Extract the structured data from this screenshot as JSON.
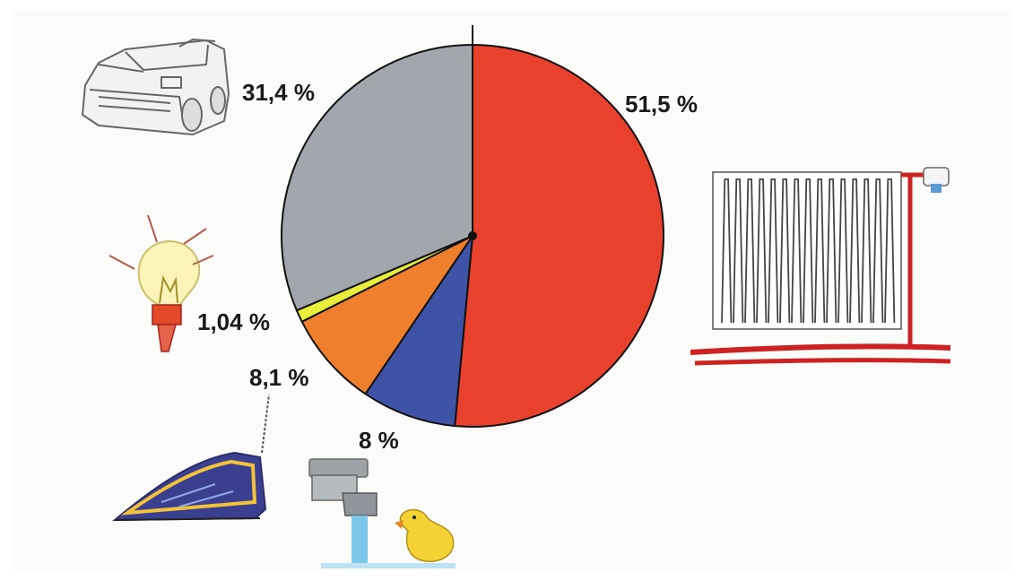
{
  "chart_data": {
    "type": "pie",
    "title": "",
    "slices": [
      {
        "value": 51.5,
        "label": "51,5 %",
        "color": "#e8412d",
        "icon": "radiator-icon"
      },
      {
        "value": 8,
        "label": "8 %",
        "color": "#3f53a6",
        "icon": "water-tap-icon"
      },
      {
        "value": 8.1,
        "label": "8,1 %",
        "color": "#f07f2d",
        "icon": "iron-icon"
      },
      {
        "value": 1.04,
        "label": "1,04 %",
        "color": "#e9ee3a",
        "icon": "light-bulb-icon"
      },
      {
        "value": 31.4,
        "label": "31,4 %",
        "color": "#a2a6ad",
        "icon": "car-icon"
      }
    ],
    "start_angle_deg": 0,
    "direction": "clockwise"
  }
}
